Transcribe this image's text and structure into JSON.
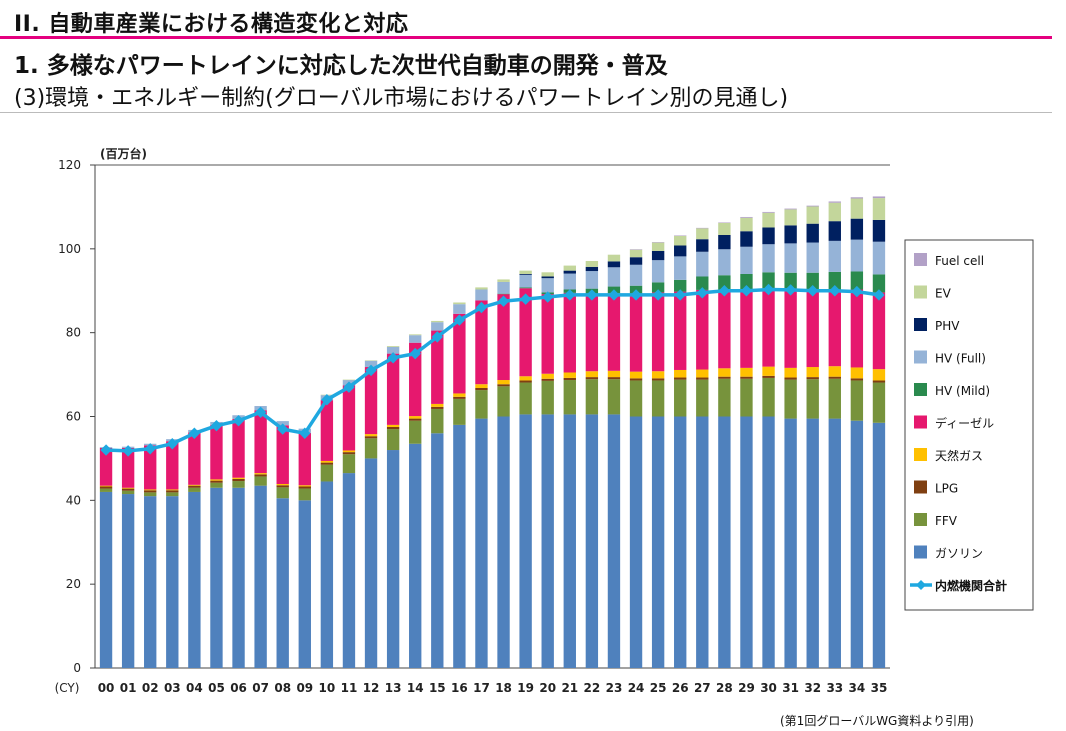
{
  "header": {
    "title": "II. 自動車産業における構造変化と対応",
    "subtitle": "1. 多様なパワートレインに対応した次世代自動車の開発・普及",
    "section": "(3)環境・エネルギー制約(グローバル市場におけるパワートレイン別の見通し)"
  },
  "source_note": "(第1回グローバルWG資料より引用)",
  "chart_data": {
    "type": "bar",
    "stacked": true,
    "unit_label": "(百万台)",
    "x_prefix": "(CY)",
    "ylim": [
      0,
      120
    ],
    "yticks": [
      0,
      20,
      40,
      60,
      80,
      100,
      120
    ],
    "categories": [
      "00",
      "01",
      "02",
      "03",
      "04",
      "05",
      "06",
      "07",
      "08",
      "09",
      "10",
      "11",
      "12",
      "13",
      "14",
      "15",
      "16",
      "17",
      "18",
      "19",
      "20",
      "21",
      "22",
      "23",
      "24",
      "25",
      "26",
      "27",
      "28",
      "29",
      "30",
      "31",
      "32",
      "33",
      "34",
      "35"
    ],
    "legend_position": "right",
    "series": [
      {
        "name": "ガソリン",
        "color": "#4f81bd",
        "values": [
          42,
          41.5,
          41,
          41,
          42,
          43,
          43,
          43.5,
          40.5,
          40,
          44.5,
          46.5,
          50,
          52,
          53.5,
          56,
          58,
          59.5,
          60,
          60.5,
          60.5,
          60.5,
          60.5,
          60.5,
          60,
          60,
          60,
          60,
          60,
          60,
          60,
          59.5,
          59.5,
          59.5,
          59,
          58.5
        ]
      },
      {
        "name": "FFV",
        "color": "#77933c",
        "values": [
          0.8,
          0.8,
          0.9,
          0.9,
          1,
          1.2,
          1.6,
          2.2,
          2.6,
          2.8,
          4,
          4.5,
          4.8,
          5,
          5.5,
          5.8,
          6.2,
          6.8,
          7.2,
          7.6,
          8,
          8.2,
          8.4,
          8.4,
          8.6,
          8.6,
          8.8,
          8.8,
          9,
          9,
          9.2,
          9.3,
          9.4,
          9.5,
          9.6,
          9.6
        ]
      },
      {
        "name": "LPG",
        "color": "#7f3f11",
        "values": [
          0.5,
          0.5,
          0.5,
          0.5,
          0.5,
          0.5,
          0.5,
          0.5,
          0.5,
          0.5,
          0.5,
          0.5,
          0.5,
          0.5,
          0.5,
          0.5,
          0.5,
          0.5,
          0.5,
          0.5,
          0.5,
          0.5,
          0.5,
          0.5,
          0.5,
          0.5,
          0.5,
          0.5,
          0.5,
          0.5,
          0.5,
          0.5,
          0.5,
          0.5,
          0.5,
          0.5
        ]
      },
      {
        "name": "天然ガス",
        "color": "#ffc000",
        "values": [
          0.2,
          0.2,
          0.2,
          0.2,
          0.2,
          0.3,
          0.3,
          0.3,
          0.3,
          0.3,
          0.4,
          0.4,
          0.5,
          0.5,
          0.6,
          0.7,
          0.8,
          0.9,
          1,
          1,
          1.2,
          1.3,
          1.4,
          1.5,
          1.6,
          1.7,
          1.8,
          1.9,
          2,
          2.1,
          2.2,
          2.3,
          2.4,
          2.5,
          2.6,
          2.7
        ]
      },
      {
        "name": "ディーゼル",
        "color": "#e6186e",
        "values": [
          9,
          9.5,
          10.5,
          11.5,
          12.5,
          13,
          14,
          15,
          14,
          12.5,
          14.5,
          15.5,
          16,
          17,
          17.5,
          17.5,
          19,
          20,
          20.5,
          21,
          19,
          19,
          18.5,
          18.5,
          18.5,
          18.8,
          18.7,
          19,
          18.8,
          18.8,
          18.7,
          18.7,
          18.4,
          18.3,
          18.6,
          18.3
        ]
      },
      {
        "name": "HV (Mild)",
        "color": "#2a8a4e",
        "values": [
          0,
          0,
          0,
          0,
          0,
          0,
          0,
          0,
          0,
          0,
          0,
          0,
          0,
          0,
          0,
          0,
          0,
          0,
          0.1,
          0.2,
          0.4,
          0.8,
          1.2,
          1.6,
          2,
          2.4,
          2.8,
          3.2,
          3.4,
          3.6,
          3.8,
          4,
          4.1,
          4.2,
          4.3,
          4.3
        ]
      },
      {
        "name": "HV (Full)",
        "color": "#95b3d7",
        "values": [
          0.2,
          0.3,
          0.4,
          0.5,
          0.6,
          0.7,
          0.9,
          1,
          1,
          1,
          1.2,
          1.3,
          1.5,
          1.6,
          1.8,
          2,
          2.3,
          2.6,
          2.8,
          3,
          3.4,
          3.8,
          4.2,
          4.6,
          5,
          5.3,
          5.6,
          5.9,
          6.2,
          6.5,
          6.7,
          7,
          7.2,
          7.4,
          7.6,
          7.8
        ]
      },
      {
        "name": "PHV",
        "color": "#002060",
        "values": [
          0,
          0,
          0,
          0,
          0,
          0,
          0,
          0,
          0,
          0,
          0,
          0,
          0,
          0,
          0,
          0,
          0,
          0,
          0,
          0.2,
          0.4,
          0.7,
          1,
          1.4,
          1.8,
          2.2,
          2.6,
          3,
          3.4,
          3.7,
          4,
          4.3,
          4.5,
          4.7,
          5,
          5.2
        ]
      },
      {
        "name": "EV",
        "color": "#c3d69b",
        "values": [
          0,
          0,
          0,
          0,
          0,
          0,
          0,
          0,
          0,
          0,
          0.1,
          0.1,
          0.1,
          0.2,
          0.2,
          0.3,
          0.4,
          0.5,
          0.6,
          0.8,
          1,
          1.2,
          1.4,
          1.6,
          1.8,
          2,
          2.3,
          2.6,
          2.9,
          3.2,
          3.5,
          3.8,
          4.1,
          4.4,
          4.8,
          5.2
        ]
      },
      {
        "name": "Fuel cell",
        "color": "#b2a1c7",
        "values": [
          0,
          0,
          0,
          0,
          0,
          0,
          0,
          0,
          0,
          0,
          0,
          0,
          0,
          0,
          0,
          0,
          0,
          0,
          0,
          0,
          0,
          0,
          0,
          0,
          0.1,
          0.1,
          0.1,
          0.1,
          0.1,
          0.2,
          0.2,
          0.2,
          0.2,
          0.3,
          0.3,
          0.4
        ]
      }
    ],
    "line_series": {
      "name": "内燃機関合計",
      "color": "#1fa8e0",
      "values": [
        52,
        51.8,
        52.3,
        53.5,
        56,
        57.8,
        59,
        61,
        57,
        56,
        64,
        67,
        71,
        74,
        75,
        79,
        83,
        86,
        87.5,
        88,
        88.5,
        89,
        89,
        89,
        89,
        89,
        89,
        89.5,
        90,
        90,
        90.3,
        90.2,
        90,
        90,
        89.8,
        89
      ]
    }
  }
}
